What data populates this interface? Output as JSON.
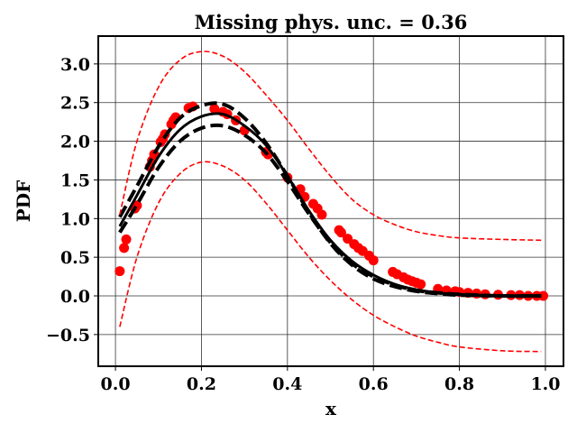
{
  "chart_data": {
    "type": "line",
    "title": "Missing phys. unc. = 0.36",
    "xlabel": "x",
    "ylabel": "PDF",
    "xlim": [
      -0.04,
      1.042
    ],
    "ylim": [
      -0.91,
      3.36
    ],
    "grid": true,
    "xticks": [
      0.0,
      0.2,
      0.4,
      0.6,
      0.8,
      1.0
    ],
    "xtick_labels": [
      "0.0",
      "0.2",
      "0.4",
      "0.6",
      "0.8",
      "1.0"
    ],
    "yticks": [
      -0.5,
      0.0,
      0.5,
      1.0,
      1.5,
      2.0,
      2.5,
      3.0
    ],
    "ytick_labels": [
      "−0.5",
      "0.0",
      "0.5",
      "1.0",
      "1.5",
      "2.0",
      "2.5",
      "3.0"
    ],
    "curve_x": [
      0.01,
      0.05,
      0.1,
      0.15,
      0.2,
      0.25,
      0.3,
      0.35,
      0.4,
      0.45,
      0.5,
      0.55,
      0.6,
      0.65,
      0.7,
      0.75,
      0.8,
      0.9,
      0.99
    ],
    "series": [
      {
        "style": "solid",
        "color": "#000000",
        "values": [
          0.9,
          1.3,
          1.8,
          2.15,
          2.32,
          2.35,
          2.2,
          1.95,
          1.55,
          1.1,
          0.72,
          0.45,
          0.27,
          0.15,
          0.08,
          0.04,
          0.02,
          0.0,
          0.0
        ]
      },
      {
        "style": "dashed",
        "color": "#000000",
        "values": [
          1.02,
          1.42,
          1.93,
          2.3,
          2.46,
          2.48,
          2.3,
          1.98,
          1.55,
          1.08,
          0.68,
          0.4,
          0.22,
          0.12,
          0.06,
          0.03,
          0.01,
          0.0,
          0.0
        ]
      },
      {
        "style": "dashed",
        "color": "#000000",
        "values": [
          0.82,
          1.18,
          1.66,
          2.0,
          2.17,
          2.2,
          2.08,
          1.85,
          1.48,
          1.06,
          0.69,
          0.42,
          0.25,
          0.14,
          0.07,
          0.04,
          0.02,
          0.0,
          0.0
        ]
      },
      {
        "style": "dashed-thin",
        "color": "#ff0000",
        "values": [
          1.05,
          2.0,
          2.7,
          3.05,
          3.16,
          3.1,
          2.9,
          2.6,
          2.27,
          1.9,
          1.55,
          1.25,
          1.05,
          0.92,
          0.83,
          0.78,
          0.75,
          0.73,
          0.72
        ]
      },
      {
        "style": "dashed-thin",
        "color": "#ff0000",
        "values": [
          -0.4,
          0.5,
          1.2,
          1.58,
          1.73,
          1.68,
          1.5,
          1.2,
          0.85,
          0.5,
          0.2,
          -0.05,
          -0.25,
          -0.4,
          -0.52,
          -0.6,
          -0.66,
          -0.71,
          -0.72
        ]
      }
    ],
    "points": {
      "color": "#ff0000",
      "x": [
        0.01,
        0.02,
        0.025,
        0.045,
        0.05,
        0.08,
        0.085,
        0.09,
        0.105,
        0.11,
        0.115,
        0.13,
        0.135,
        0.14,
        0.17,
        0.18,
        0.23,
        0.25,
        0.26,
        0.28,
        0.3,
        0.35,
        0.355,
        0.4,
        0.43,
        0.44,
        0.46,
        0.47,
        0.48,
        0.52,
        0.525,
        0.54,
        0.555,
        0.565,
        0.575,
        0.59,
        0.6,
        0.645,
        0.655,
        0.67,
        0.68,
        0.69,
        0.7,
        0.71,
        0.75,
        0.77,
        0.79,
        0.8,
        0.82,
        0.84,
        0.86,
        0.89,
        0.92,
        0.94,
        0.96,
        0.98,
        0.995
      ],
      "y": [
        0.32,
        0.62,
        0.73,
        1.13,
        1.17,
        1.67,
        1.75,
        1.83,
        1.99,
        2.03,
        2.09,
        2.22,
        2.27,
        2.31,
        2.43,
        2.45,
        2.42,
        2.38,
        2.35,
        2.27,
        2.14,
        1.86,
        1.83,
        1.53,
        1.38,
        1.28,
        1.19,
        1.13,
        1.05,
        0.85,
        0.82,
        0.74,
        0.67,
        0.62,
        0.58,
        0.52,
        0.46,
        0.31,
        0.28,
        0.24,
        0.21,
        0.19,
        0.17,
        0.15,
        0.09,
        0.07,
        0.06,
        0.05,
        0.04,
        0.03,
        0.02,
        0.015,
        0.01,
        0.01,
        0.0,
        0.0,
        0.0
      ]
    }
  }
}
